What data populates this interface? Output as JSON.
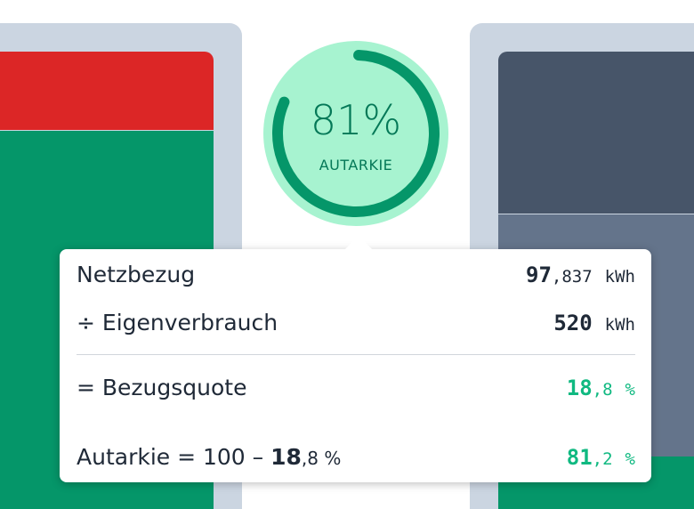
{
  "colors": {
    "panel": "#cbd5e1",
    "red": "#dc2626",
    "green": "#059669",
    "slate": "#475569",
    "slate_light": "#64748b",
    "gauge_fill": "#a7f3d0",
    "gauge_ring": "#059669",
    "accent_green": "#10b981"
  },
  "gauge": {
    "value": "81%",
    "label": "AUTARKIE",
    "progress": 0.81
  },
  "tooltip": {
    "rows": [
      {
        "label": "Netzbezug",
        "int": "97",
        "frac": ",837",
        "unit": "kWh"
      },
      {
        "label": "÷ Eigenverbrauch",
        "int": "520",
        "frac": "",
        "unit": "kWh"
      },
      {
        "label": "= Bezugsquote",
        "int": "18",
        "frac": ",8",
        "unit": "%"
      }
    ],
    "autarkie": {
      "label_prefix": "Autarkie = 100 – ",
      "label_int": "18",
      "label_frac": ",8",
      "label_unit": " %",
      "int": "81",
      "frac": ",2",
      "unit": "%"
    }
  }
}
